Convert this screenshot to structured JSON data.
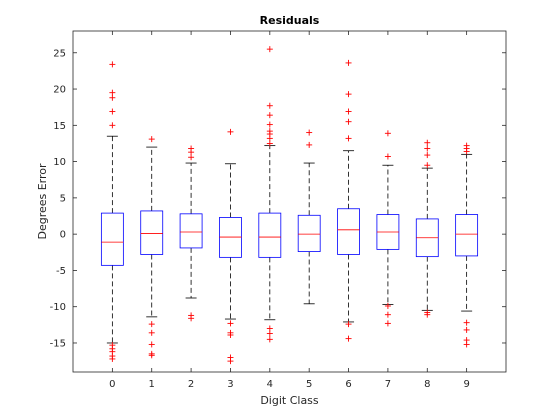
{
  "chart_data": {
    "type": "boxplot",
    "title": "Residuals",
    "xlabel": "Digit Class",
    "ylabel": "Degrees Error",
    "categories": [
      "0",
      "1",
      "2",
      "3",
      "4",
      "5",
      "6",
      "7",
      "8",
      "9"
    ],
    "ylim": [
      -19,
      28
    ],
    "yticks": [
      -15,
      -10,
      -5,
      0,
      5,
      10,
      15,
      20,
      25
    ],
    "grid": false,
    "colors": {
      "box": "#0000ff",
      "median": "#ff0000",
      "whisker": "#000000",
      "outlier": "#ff0000",
      "axis": "#262626"
    },
    "boxes": [
      {
        "label": "0",
        "q1": -4.3,
        "median": -1.1,
        "q3": 2.9,
        "whisker_low": -15.0,
        "whisker_high": 13.5,
        "outliers": [
          23.4,
          19.5,
          18.8,
          16.9,
          15.0,
          -15.3,
          -15.8,
          -16.2,
          -16.8,
          -17.2
        ]
      },
      {
        "label": "1",
        "q1": -2.8,
        "median": 0.1,
        "q3": 3.2,
        "whisker_low": -11.4,
        "whisker_high": 12.0,
        "outliers": [
          13.1,
          -12.4,
          -13.6,
          -15.2,
          -16.5,
          -16.7
        ]
      },
      {
        "label": "2",
        "q1": -1.9,
        "median": 0.3,
        "q3": 2.8,
        "whisker_low": -8.8,
        "whisker_high": 9.8,
        "outliers": [
          11.8,
          11.3,
          10.6,
          -11.2,
          -11.6
        ]
      },
      {
        "label": "3",
        "q1": -3.2,
        "median": -0.4,
        "q3": 2.3,
        "whisker_low": -11.7,
        "whisker_high": 9.7,
        "outliers": [
          14.1,
          -12.3,
          -13.6,
          -13.9,
          -17.0,
          -17.5
        ]
      },
      {
        "label": "4",
        "q1": -3.2,
        "median": -0.4,
        "q3": 2.9,
        "whisker_low": -11.8,
        "whisker_high": 12.2,
        "outliers": [
          25.5,
          17.7,
          16.4,
          15.1,
          14.2,
          13.8,
          13.2,
          12.5,
          -13.0,
          -13.7,
          -14.5
        ]
      },
      {
        "label": "5",
        "q1": -2.4,
        "median": 0.0,
        "q3": 2.6,
        "whisker_low": -9.6,
        "whisker_high": 9.8,
        "outliers": [
          14.0,
          12.3
        ]
      },
      {
        "label": "6",
        "q1": -2.8,
        "median": 0.6,
        "q3": 3.5,
        "whisker_low": -12.1,
        "whisker_high": 11.5,
        "outliers": [
          23.6,
          19.3,
          16.9,
          15.5,
          13.2,
          -12.4,
          -14.4
        ]
      },
      {
        "label": "7",
        "q1": -2.1,
        "median": 0.3,
        "q3": 2.7,
        "whisker_low": -9.7,
        "whisker_high": 9.5,
        "outliers": [
          13.9,
          10.7,
          -9.9,
          -11.1,
          -12.3
        ]
      },
      {
        "label": "8",
        "q1": -3.1,
        "median": -0.5,
        "q3": 2.1,
        "whisker_low": -10.5,
        "whisker_high": 9.1,
        "outliers": [
          12.6,
          11.8,
          10.9,
          9.5,
          -10.8,
          -11.1
        ]
      },
      {
        "label": "9",
        "q1": -3.0,
        "median": 0.0,
        "q3": 2.7,
        "whisker_low": -10.6,
        "whisker_high": 11.0,
        "outliers": [
          12.2,
          11.8,
          11.4,
          -12.2,
          -13.2,
          -14.6,
          -15.2
        ]
      }
    ]
  }
}
